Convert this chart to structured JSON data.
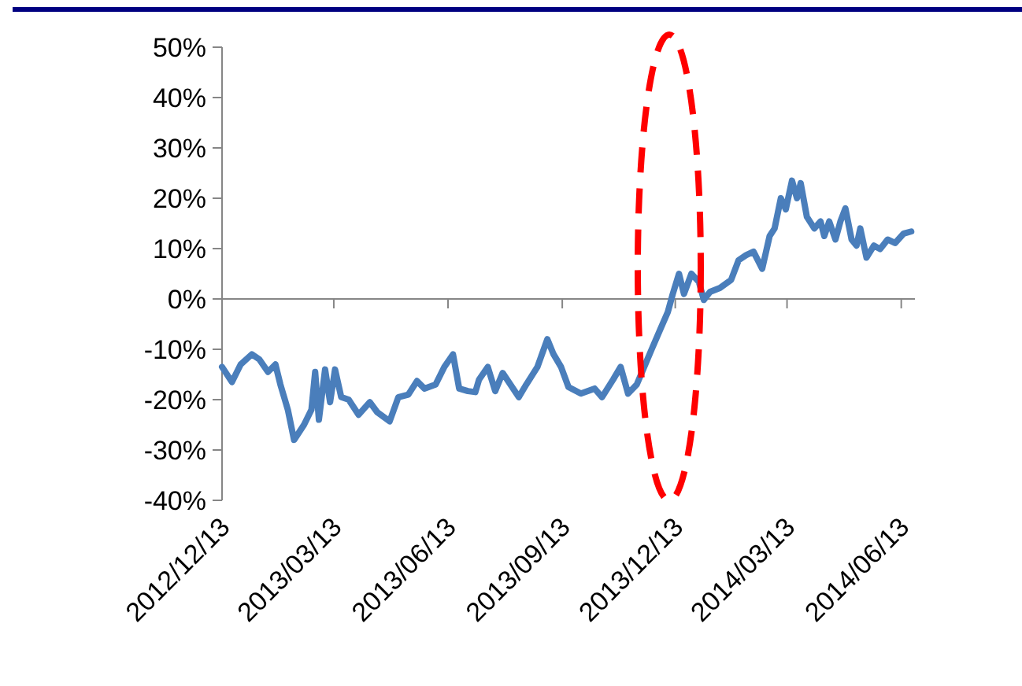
{
  "chart_data": {
    "type": "line",
    "x": [
      "2012-12-13",
      "2012-12-21",
      "2012-12-28",
      "2013-01-06",
      "2013-01-12",
      "2013-01-19",
      "2013-01-25",
      "2013-01-29",
      "2013-02-04",
      "2013-02-09",
      "2013-02-17",
      "2013-02-23",
      "2013-02-26",
      "2013-03-01",
      "2013-03-06",
      "2013-03-10",
      "2013-03-14",
      "2013-03-19",
      "2013-03-25",
      "2013-04-02",
      "2013-04-11",
      "2013-04-17",
      "2013-04-27",
      "2013-05-04",
      "2013-05-12",
      "2013-05-19",
      "2013-05-25",
      "2013-06-03",
      "2013-06-10",
      "2013-06-17",
      "2013-06-22",
      "2013-06-29",
      "2013-07-05",
      "2013-07-08",
      "2013-07-15",
      "2013-07-21",
      "2013-07-27",
      "2013-08-09",
      "2013-08-15",
      "2013-08-24",
      "2013-09-01",
      "2013-09-06",
      "2013-09-12",
      "2013-09-18",
      "2013-09-28",
      "2013-10-09",
      "2013-10-15",
      "2013-10-24",
      "2013-10-30",
      "2013-11-05",
      "2013-11-12",
      "2013-11-18",
      "2013-11-24",
      "2013-12-01",
      "2013-12-07",
      "2013-12-11",
      "2013-12-16",
      "2013-12-20",
      "2013-12-26",
      "2014-01-01",
      "2014-01-05",
      "2014-01-10",
      "2014-01-18",
      "2014-01-27",
      "2014-02-02",
      "2014-02-08",
      "2014-02-14",
      "2014-02-21",
      "2014-02-27",
      "2014-03-03",
      "2014-03-08",
      "2014-03-12",
      "2014-03-17",
      "2014-03-21",
      "2014-03-24",
      "2014-03-29",
      "2014-04-04",
      "2014-04-09",
      "2014-04-12",
      "2014-04-16",
      "2014-04-21",
      "2014-04-25",
      "2014-04-29",
      "2014-05-04",
      "2014-05-08",
      "2014-05-11",
      "2014-05-16",
      "2014-05-22",
      "2014-05-27",
      "2014-06-02",
      "2014-06-08",
      "2014-06-15",
      "2014-06-21"
    ],
    "series": [
      {
        "color": "#4a7ebb",
        "values": [
          -13.5,
          -16.5,
          -13,
          -11,
          -12,
          -14.5,
          -13,
          -17,
          -22,
          -28,
          -25,
          -22,
          -14.5,
          -24,
          -14,
          -20.5,
          -14,
          -19.5,
          -20,
          -23,
          -20.5,
          -22.5,
          -24.3,
          -19.5,
          -19,
          -16.3,
          -17.8,
          -17,
          -13.5,
          -11,
          -17.8,
          -18.3,
          -18.5,
          -16,
          -13.5,
          -18.3,
          -14.7,
          -19.5,
          -17,
          -13.5,
          -8,
          -11,
          -13.5,
          -17.5,
          -18.8,
          -17.8,
          -19.5,
          -16,
          -13.5,
          -18.8,
          -17,
          -13.5,
          -10,
          -6,
          -2.6,
          1,
          5,
          1,
          5,
          3.4,
          -0.2,
          1.4,
          2.2,
          3.8,
          7.7,
          8.7,
          9.4,
          6,
          12.5,
          14,
          20,
          17.8,
          23.5,
          20,
          23,
          16.3,
          14,
          15.4,
          12.5,
          15.4,
          11.8,
          15.4,
          18,
          11.8,
          10.6,
          14,
          8.2,
          10.6,
          9.9,
          11.8,
          11.1,
          13,
          13.4
        ]
      }
    ],
    "xlim": [
      "2012-12-13",
      "2014-06-24"
    ],
    "xticks": [
      {
        "value": "2012-12-13",
        "label": "2012/12/13"
      },
      {
        "value": "2013-03-13",
        "label": "2013/03/13"
      },
      {
        "value": "2013-06-13",
        "label": "2013/06/13"
      },
      {
        "value": "2013-09-13",
        "label": "2013/09/13"
      },
      {
        "value": "2013-12-13",
        "label": "2013/12/13"
      },
      {
        "value": "2014-03-13",
        "label": "2014/03/13"
      },
      {
        "value": "2014-06-13",
        "label": "2014/06/13"
      }
    ],
    "ylim": [
      -40,
      50
    ],
    "yticks": [
      {
        "value": -40,
        "label": "-40%"
      },
      {
        "value": -30,
        "label": "-30%"
      },
      {
        "value": -20,
        "label": "-20%"
      },
      {
        "value": -10,
        "label": "-10%"
      },
      {
        "value": 0,
        "label": "0%"
      },
      {
        "value": 10,
        "label": "10%"
      },
      {
        "value": 20,
        "label": "20%"
      },
      {
        "value": 30,
        "label": "30%"
      },
      {
        "value": 40,
        "label": "40%"
      },
      {
        "value": 50,
        "label": "50%"
      }
    ],
    "marker": "none",
    "line_style": "solid"
  }
}
